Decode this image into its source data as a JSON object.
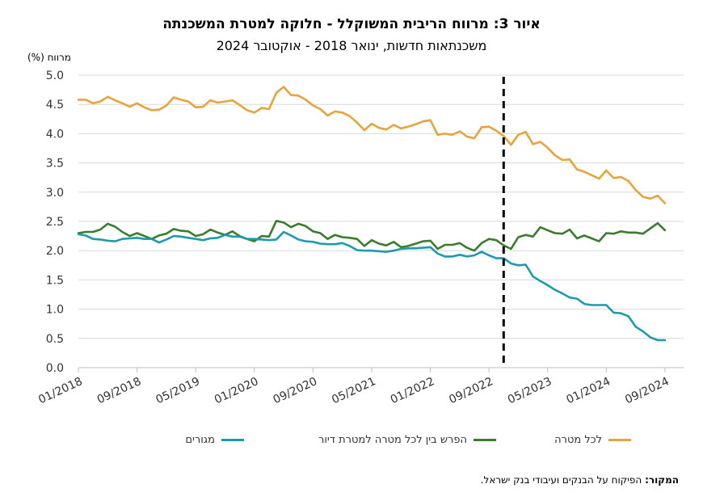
{
  "header": {
    "title_prefix": "איור 3",
    "title_rest": ": מרווח הריבית המשוקלל - חלוקה למטרת המשכנתה",
    "subtitle": "משכנתאות חדשות, ינואר 2018 - אוקטובר 2024"
  },
  "axis": {
    "ylabel": "מרווח (%)"
  },
  "source": {
    "label": "המקור:",
    "text": " הפיקוח על הבנקים ועיבודי בנק ישראל."
  },
  "legend": {
    "items": [
      {
        "label": "לכל מטרה",
        "color": "#E8A33D"
      },
      {
        "label": "הפרש בין לכל מטרה למטרת דיור",
        "color": "#3A7D2C"
      },
      {
        "label": "מגורים",
        "color": "#1C9AAE"
      }
    ]
  },
  "chart_data": {
    "type": "line",
    "title": "איור 3: מרווח הריבית המשוקלל - חלוקה למטרת המשכנתה",
    "subtitle": "משכנתאות חדשות, ינואר 2018 - אוקטובר 2024",
    "ylabel": "מרווח (%)",
    "xlabel": "",
    "ylim": [
      0,
      5
    ],
    "yticks": [
      "0.0",
      "0.5",
      "1.0",
      "1.5",
      "2.0",
      "2.5",
      "3.0",
      "3.5",
      "4.0",
      "4.5",
      "5.0"
    ],
    "x_start": "01/2018",
    "x_end": "10/2024",
    "xticks": [
      "01/2018",
      "09/2018",
      "05/2019",
      "01/2020",
      "09/2020",
      "05/2021",
      "01/2022",
      "09/2022",
      "05/2023",
      "01/2024",
      "09/2024"
    ],
    "grid": true,
    "legend_position": "bottom",
    "vertical_marker": "11/2022",
    "series": [
      {
        "name": "לכל מטרה",
        "color": "#E8A33D",
        "values": [
          4.58,
          4.58,
          4.52,
          4.55,
          4.63,
          4.57,
          4.52,
          4.46,
          4.52,
          4.45,
          4.4,
          4.41,
          4.48,
          4.62,
          4.58,
          4.55,
          4.45,
          4.46,
          4.57,
          4.53,
          4.55,
          4.57,
          4.49,
          4.4,
          4.36,
          4.44,
          4.42,
          4.7,
          4.8,
          4.66,
          4.65,
          4.58,
          4.48,
          4.42,
          4.31,
          4.38,
          4.36,
          4.3,
          4.19,
          4.06,
          4.17,
          4.1,
          4.07,
          4.15,
          4.09,
          4.12,
          4.16,
          4.21,
          4.23,
          3.98,
          4.0,
          3.98,
          4.04,
          3.95,
          3.92,
          4.11,
          4.12,
          4.05,
          3.96,
          3.81,
          3.98,
          4.03,
          3.82,
          3.86,
          3.76,
          3.63,
          3.55,
          3.56,
          3.39,
          3.35,
          3.29,
          3.23,
          3.37,
          3.24,
          3.26,
          3.19,
          3.04,
          2.92,
          2.89,
          2.94,
          2.81
        ]
      },
      {
        "name": "הפרש בין לכל מטרה למטרת דיור",
        "color": "#3A7D2C",
        "values": [
          2.3,
          2.32,
          2.32,
          2.36,
          2.46,
          2.41,
          2.32,
          2.25,
          2.3,
          2.25,
          2.2,
          2.26,
          2.29,
          2.37,
          2.34,
          2.33,
          2.25,
          2.28,
          2.36,
          2.31,
          2.27,
          2.33,
          2.25,
          2.2,
          2.16,
          2.25,
          2.24,
          2.51,
          2.48,
          2.4,
          2.46,
          2.42,
          2.33,
          2.3,
          2.2,
          2.27,
          2.23,
          2.22,
          2.2,
          2.08,
          2.18,
          2.12,
          2.09,
          2.15,
          2.06,
          2.08,
          2.12,
          2.16,
          2.17,
          2.03,
          2.1,
          2.1,
          2.13,
          2.05,
          2.0,
          2.13,
          2.2,
          2.18,
          2.09,
          2.03,
          2.23,
          2.27,
          2.24,
          2.4,
          2.35,
          2.3,
          2.29,
          2.36,
          2.21,
          2.26,
          2.21,
          2.16,
          2.3,
          2.29,
          2.33,
          2.31,
          2.31,
          2.29,
          2.38,
          2.47,
          2.35
        ]
      },
      {
        "name": "מגורים",
        "color": "#1C9AAE",
        "values": [
          2.28,
          2.26,
          2.2,
          2.19,
          2.17,
          2.16,
          2.2,
          2.21,
          2.22,
          2.2,
          2.2,
          2.14,
          2.19,
          2.25,
          2.24,
          2.22,
          2.2,
          2.18,
          2.21,
          2.22,
          2.27,
          2.24,
          2.24,
          2.2,
          2.2,
          2.19,
          2.18,
          2.19,
          2.32,
          2.26,
          2.19,
          2.16,
          2.15,
          2.12,
          2.11,
          2.11,
          2.13,
          2.08,
          2.01,
          2.0,
          2.0,
          1.99,
          1.98,
          2.0,
          2.03,
          2.04,
          2.04,
          2.05,
          2.06,
          1.95,
          1.9,
          1.9,
          1.93,
          1.9,
          1.92,
          1.98,
          1.92,
          1.87,
          1.87,
          1.78,
          1.75,
          1.76,
          1.56,
          1.48,
          1.41,
          1.33,
          1.27,
          1.2,
          1.18,
          1.09,
          1.07,
          1.07,
          1.07,
          0.94,
          0.93,
          0.88,
          0.7,
          0.62,
          0.52,
          0.47,
          0.47
        ]
      }
    ]
  }
}
